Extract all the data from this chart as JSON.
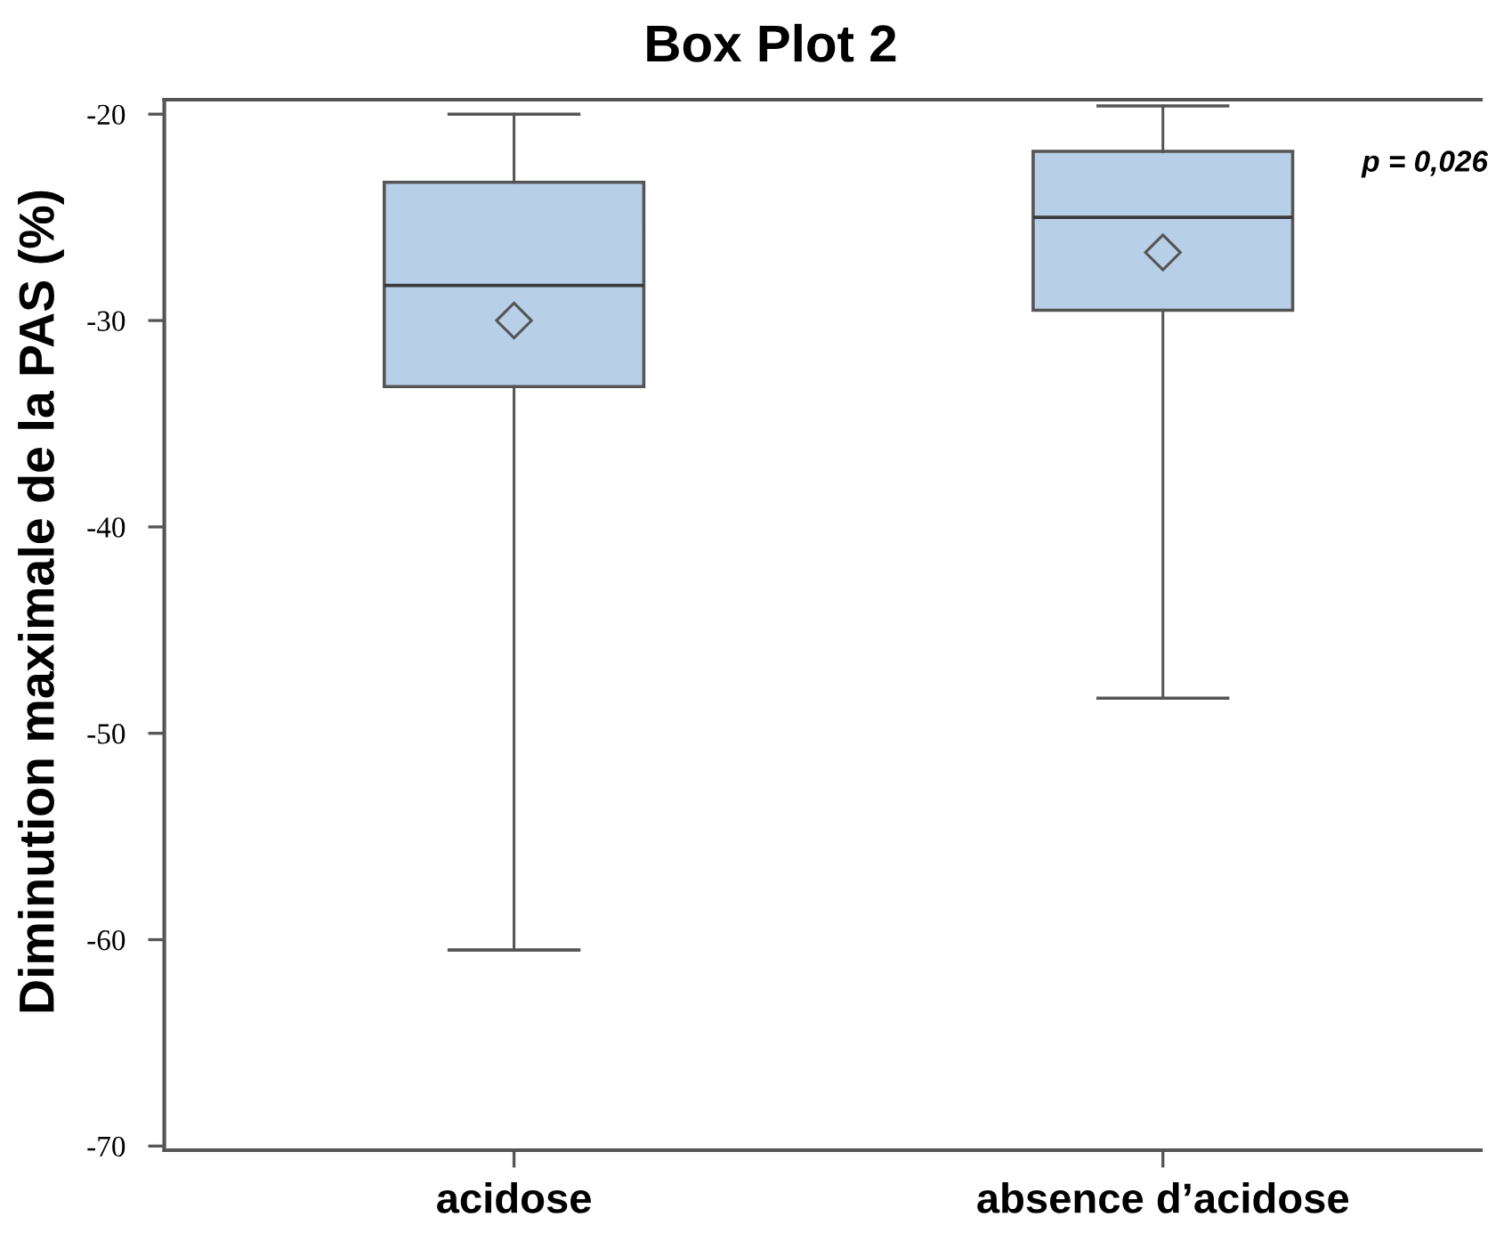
{
  "chart_data": {
    "type": "box",
    "title": "Box Plot 2",
    "ylabel": "Diminution maximale de la PAS (%)",
    "categories": [
      "acidose",
      "absence d’acidose"
    ],
    "series": [
      {
        "color": "#b8cfe8",
        "boxes": [
          {
            "low": -60.5,
            "q1": -33.2,
            "median": -28.3,
            "q3": -23.3,
            "high": -20.0,
            "mean": -30.0
          },
          {
            "low": -48.3,
            "q1": -29.5,
            "median": -25.0,
            "q3": -21.8,
            "high": -19.6,
            "mean": -26.7
          }
        ]
      }
    ],
    "ylim": [
      -70.2,
      -19.3
    ],
    "yticks": [
      -70,
      -60,
      -50,
      -40,
      -30,
      -20
    ],
    "marker": "diamond",
    "annotations": [
      "p = 0,026"
    ]
  }
}
